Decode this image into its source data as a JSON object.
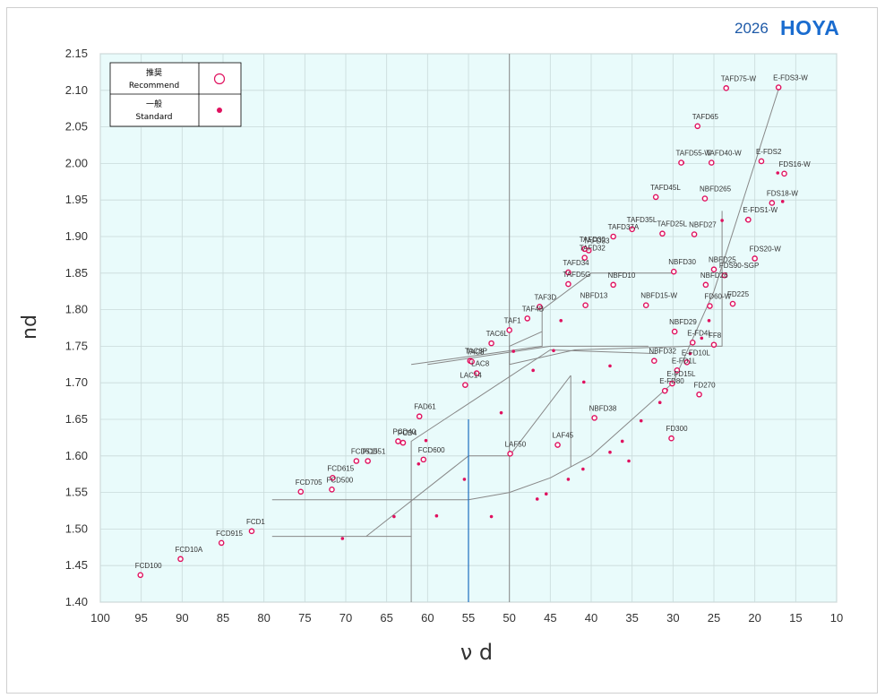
{
  "brand": {
    "year": "2026",
    "name": "HOYA",
    "color": "#1a6ccf"
  },
  "chart_data": {
    "type": "scatter",
    "title": "",
    "xlabel": "ν d",
    "ylabel": "nd",
    "xlim": [
      100,
      10
    ],
    "ylim": [
      1.4,
      2.15
    ],
    "x_reversed": true,
    "xticks": [
      "100",
      "95",
      "90",
      "85",
      "80",
      "75",
      "70",
      "65",
      "60",
      "55",
      "50",
      "45",
      "40",
      "35",
      "30",
      "25",
      "20",
      "15",
      "10"
    ],
    "yticks": [
      "1.40",
      "1.45",
      "1.50",
      "1.55",
      "1.60",
      "1.65",
      "1.70",
      "1.75",
      "1.80",
      "1.85",
      "1.90",
      "1.95",
      "2.00",
      "2.05",
      "2.10",
      "2.15"
    ],
    "grid": true,
    "background": "#e9fbfb",
    "marker_color": "#e0115f",
    "legend": {
      "placement": "top-left",
      "items": [
        {
          "label_jp": "推奨",
          "label_en": "Recommend",
          "style": "open-circle"
        },
        {
          "label_jp": "一般",
          "label_en": "Standard",
          "style": "dot"
        }
      ]
    },
    "series": [
      {
        "name": "Recommend",
        "points": [
          {
            "label": "TAFD75-W",
            "x": 23.5,
            "y": 2.103
          },
          {
            "label": "E-FDS3-W",
            "x": 17.1,
            "y": 2.104
          },
          {
            "label": "TAFD65",
            "x": 27.0,
            "y": 2.051
          },
          {
            "label": "TAFD55-W",
            "x": 29.0,
            "y": 2.001
          },
          {
            "label": "TAFD40-W",
            "x": 25.3,
            "y": 2.001
          },
          {
            "label": "E-FDS2",
            "x": 19.2,
            "y": 2.003
          },
          {
            "label": "FDS16-W",
            "x": 16.4,
            "y": 1.986
          },
          {
            "label": "TAFD45L",
            "x": 32.1,
            "y": 1.954
          },
          {
            "label": "NBFD265",
            "x": 26.1,
            "y": 1.952
          },
          {
            "label": "FDS18-W",
            "x": 17.9,
            "y": 1.946
          },
          {
            "label": "E-FDS1-W",
            "x": 20.8,
            "y": 1.923
          },
          {
            "label": "TAFD35L",
            "x": 35.0,
            "y": 1.91
          },
          {
            "label": "TAFD25L",
            "x": 31.3,
            "y": 1.904
          },
          {
            "label": "NBFD27",
            "x": 27.4,
            "y": 1.903
          },
          {
            "label": "TAFD37A",
            "x": 37.3,
            "y": 1.9
          },
          {
            "label": "TAFD33",
            "x": 40.3,
            "y": 1.881
          },
          {
            "label": "FDS20-W",
            "x": 20.0,
            "y": 1.87
          },
          {
            "label": "TAFD30",
            "x": 40.8,
            "y": 1.883
          },
          {
            "label": "TAFD32",
            "x": 40.8,
            "y": 1.871
          },
          {
            "label": "NBFD30",
            "x": 29.9,
            "y": 1.852
          },
          {
            "label": "NBFD25",
            "x": 25.0,
            "y": 1.855
          },
          {
            "label": "FDS90-SGP",
            "x": 23.7,
            "y": 1.847
          },
          {
            "label": "TAFD34",
            "x": 42.8,
            "y": 1.851
          },
          {
            "label": "TAFD5G",
            "x": 42.8,
            "y": 1.835
          },
          {
            "label": "NBFD10",
            "x": 37.3,
            "y": 1.834
          },
          {
            "label": "NBFD26",
            "x": 26.0,
            "y": 1.834
          },
          {
            "label": "FD225",
            "x": 22.7,
            "y": 1.808
          },
          {
            "label": "TAF3D",
            "x": 46.3,
            "y": 1.804
          },
          {
            "label": "NBFD13",
            "x": 40.7,
            "y": 1.806
          },
          {
            "label": "NBFD15-W",
            "x": 33.3,
            "y": 1.806
          },
          {
            "label": "FD60-W",
            "x": 25.5,
            "y": 1.805
          },
          {
            "label": "TAF4B",
            "x": 47.8,
            "y": 1.788
          },
          {
            "label": "TAF1",
            "x": 50.0,
            "y": 1.772
          },
          {
            "label": "NBFD29",
            "x": 29.8,
            "y": 1.77
          },
          {
            "label": "TAC6L",
            "x": 52.2,
            "y": 1.754
          },
          {
            "label": "E-FD4L",
            "x": 27.6,
            "y": 1.755
          },
          {
            "label": "FF8",
            "x": 25.0,
            "y": 1.752
          },
          {
            "label": "TAC8P",
            "x": 54.8,
            "y": 1.73
          },
          {
            "label": "TAC8",
            "x": 54.6,
            "y": 1.729
          },
          {
            "label": "NBFD32",
            "x": 32.3,
            "y": 1.73
          },
          {
            "label": "E-FD10L",
            "x": 28.3,
            "y": 1.728
          },
          {
            "label": "E-FD1L",
            "x": 29.5,
            "y": 1.717
          },
          {
            "label": "LAC8",
            "x": 54.0,
            "y": 1.713
          },
          {
            "label": "E-FD15L",
            "x": 30.1,
            "y": 1.699
          },
          {
            "label": "LAC14",
            "x": 55.4,
            "y": 1.697
          },
          {
            "label": "E-FD80",
            "x": 31.0,
            "y": 1.689
          },
          {
            "label": "FD270",
            "x": 26.8,
            "y": 1.684
          },
          {
            "label": "FAD61",
            "x": 61.0,
            "y": 1.654
          },
          {
            "label": "NBFD38",
            "x": 39.6,
            "y": 1.652
          },
          {
            "label": "FD300",
            "x": 30.2,
            "y": 1.624
          },
          {
            "label": "PCD40",
            "x": 63.6,
            "y": 1.62
          },
          {
            "label": "PCD4",
            "x": 63.0,
            "y": 1.618
          },
          {
            "label": "LAF45",
            "x": 44.1,
            "y": 1.615
          },
          {
            "label": "LAF50",
            "x": 49.9,
            "y": 1.603
          },
          {
            "label": "FCD515",
            "x": 68.7,
            "y": 1.593
          },
          {
            "label": "PCD51",
            "x": 67.3,
            "y": 1.593
          },
          {
            "label": "FCD600",
            "x": 60.5,
            "y": 1.595
          },
          {
            "label": "FCD615",
            "x": 71.6,
            "y": 1.57
          },
          {
            "label": "FCD705",
            "x": 75.5,
            "y": 1.551
          },
          {
            "label": "FCD500",
            "x": 71.7,
            "y": 1.554
          },
          {
            "label": "FCD1",
            "x": 81.5,
            "y": 1.497
          },
          {
            "label": "FCD915",
            "x": 85.2,
            "y": 1.481
          },
          {
            "label": "FCD10A",
            "x": 90.2,
            "y": 1.459
          },
          {
            "label": "FCD100",
            "x": 95.1,
            "y": 1.437
          }
        ]
      },
      {
        "name": "Standard",
        "points": [
          {
            "x": 17.2,
            "y": 1.987
          },
          {
            "x": 16.6,
            "y": 1.948
          },
          {
            "x": 28.8,
            "y": 2.001
          },
          {
            "x": 25.4,
            "y": 2.0
          },
          {
            "x": 32.1,
            "y": 1.955
          },
          {
            "x": 31.2,
            "y": 1.904
          },
          {
            "x": 24.0,
            "y": 1.922
          },
          {
            "x": 21.0,
            "y": 1.923
          },
          {
            "x": 33.2,
            "y": 1.807
          },
          {
            "x": 25.5,
            "y": 1.806
          },
          {
            "x": 25.6,
            "y": 1.785
          },
          {
            "x": 26.5,
            "y": 1.761
          },
          {
            "x": 27.9,
            "y": 1.74
          },
          {
            "x": 30.8,
            "y": 1.69
          },
          {
            "x": 31.6,
            "y": 1.673
          },
          {
            "x": 33.9,
            "y": 1.648
          },
          {
            "x": 35.4,
            "y": 1.593
          },
          {
            "x": 36.2,
            "y": 1.62
          },
          {
            "x": 37.7,
            "y": 1.605
          },
          {
            "x": 37.7,
            "y": 1.723
          },
          {
            "x": 40.9,
            "y": 1.701
          },
          {
            "x": 41.0,
            "y": 1.582
          },
          {
            "x": 42.8,
            "y": 1.568
          },
          {
            "x": 45.5,
            "y": 1.548
          },
          {
            "x": 46.6,
            "y": 1.541
          },
          {
            "x": 44.6,
            "y": 1.744
          },
          {
            "x": 43.7,
            "y": 1.785
          },
          {
            "x": 47.1,
            "y": 1.717
          },
          {
            "x": 49.5,
            "y": 1.743
          },
          {
            "x": 51.0,
            "y": 1.659
          },
          {
            "x": 52.2,
            "y": 1.517
          },
          {
            "x": 55.5,
            "y": 1.568
          },
          {
            "x": 58.9,
            "y": 1.518
          },
          {
            "x": 60.2,
            "y": 1.621
          },
          {
            "x": 61.1,
            "y": 1.589
          },
          {
            "x": 64.1,
            "y": 1.517
          },
          {
            "x": 70.4,
            "y": 1.487
          }
        ]
      }
    ],
    "region_lines_color": "#888888",
    "region_line_accent": "#1e6fbf"
  }
}
